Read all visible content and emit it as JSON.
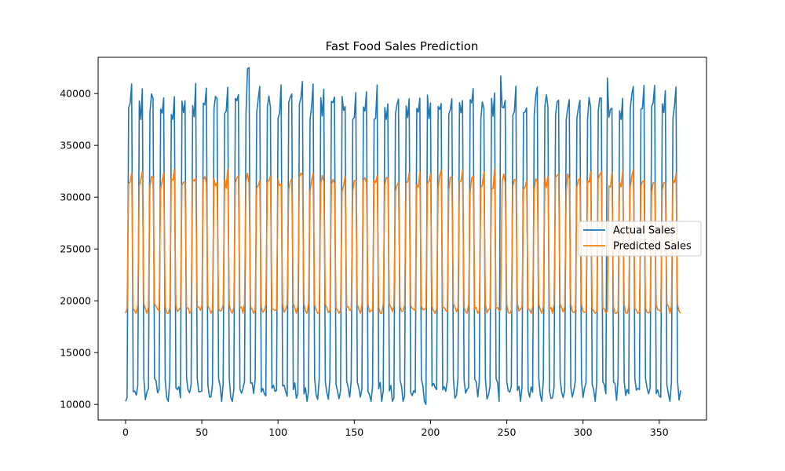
{
  "chart_data": {
    "type": "line",
    "title": "Fast Food Sales Prediction",
    "xlabel": "",
    "ylabel": "",
    "xlim": [
      -18,
      381
    ],
    "ylim": [
      8500,
      43500
    ],
    "x_ticks": [
      0,
      50,
      100,
      150,
      200,
      250,
      300,
      350
    ],
    "y_ticks": [
      10000,
      15000,
      20000,
      25000,
      30000,
      35000,
      40000
    ],
    "grid": false,
    "legend_position": "center-right",
    "series": [
      {
        "name": "Actual Sales",
        "color": "#1f77b4",
        "pattern_mode": "weekly",
        "n_points": 365,
        "weekly_week_values": [
          10800,
          11600,
          38500,
          38700,
          39800,
          12000,
          11300
        ],
        "low_range": [
          10300,
          12500
        ],
        "high_range": [
          37500,
          42500
        ],
        "highlight_points": [
          [
            80,
            42400
          ],
          [
            81,
            42500
          ],
          [
            197,
            10000
          ],
          [
            246,
            41700
          ],
          [
            316,
            41500
          ]
        ]
      },
      {
        "name": "Predicted Sales",
        "color": "#ff7f0e",
        "pattern_mode": "weekly",
        "n_points": 365,
        "weekly_week_values": [
          18800,
          19300,
          31200,
          31600,
          32000,
          19600,
          19100
        ],
        "low_range": [
          18800,
          19700
        ],
        "high_range": [
          30500,
          33200
        ]
      }
    ]
  }
}
